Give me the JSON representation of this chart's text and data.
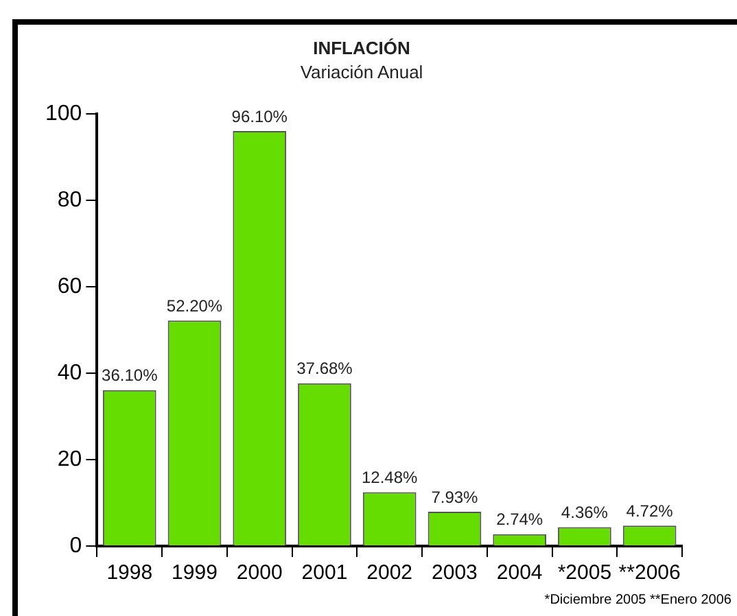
{
  "chart_data": {
    "type": "bar",
    "title": "INFLACIÓN",
    "subtitle": "Variación Anual",
    "categories": [
      "1998",
      "1999",
      "2000",
      "2001",
      "2002",
      "2003",
      "2004",
      "*2005",
      "**2006"
    ],
    "values": [
      36.1,
      52.2,
      96.1,
      37.68,
      12.48,
      7.93,
      2.74,
      4.36,
      4.72
    ],
    "value_labels": [
      "36.10%",
      "52.20%",
      "96.10%",
      "37.68%",
      "12.48%",
      "7.93%",
      "2.74%",
      "4.36%",
      "4.72%"
    ],
    "color": "#66dd00",
    "ylim": [
      0,
      100
    ],
    "yticks": [
      0,
      20,
      40,
      60,
      80,
      100
    ],
    "grid": false,
    "annotations": [
      "*Diciembre 2005 **Enero 2006"
    ]
  }
}
